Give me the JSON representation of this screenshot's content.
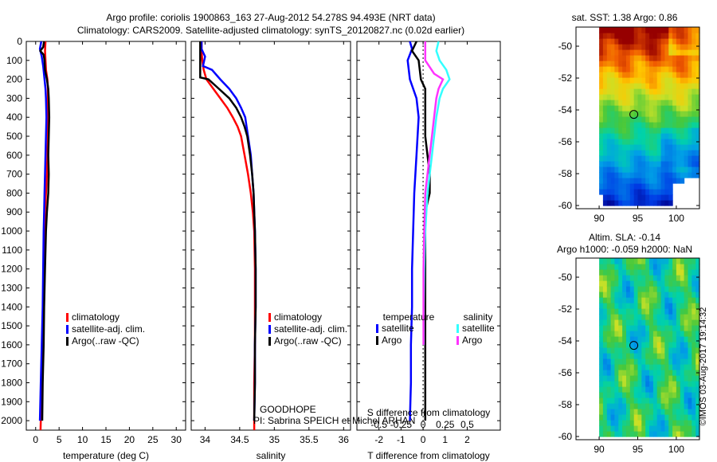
{
  "header": {
    "title_line1": "Argo profile: coriolis 1900863_163 27-Aug-2012 54.278S 94.493E (NRT data)",
    "title_line2": "Climatology: CARS2009. Satellite-adjusted climatology: synTS_20120827.nc (0.02d earlier)"
  },
  "colors": {
    "climatology": "#ff0000",
    "satellite": "#0000ff",
    "argo": "#000000",
    "sal_satellite": "#33ffff",
    "sal_argo": "#ff33ff"
  },
  "yaxis": {
    "ylim": [
      0,
      2050
    ],
    "ticks": [
      0,
      100,
      200,
      300,
      400,
      500,
      600,
      700,
      800,
      900,
      1000,
      1100,
      1200,
      1300,
      1400,
      1500,
      1600,
      1700,
      1800,
      1900,
      2000
    ]
  },
  "chart_data": [
    {
      "type": "line",
      "id": "temperature",
      "xlabel": "temperature (deg C)",
      "xlim": [
        -2,
        32
      ],
      "xticks": [
        0,
        5,
        10,
        15,
        20,
        25,
        30
      ],
      "xtick_labels": [
        "0",
        "5",
        "10",
        "15",
        "20",
        "25",
        "30"
      ],
      "legend": [
        "climatology",
        "satellite-adj. clim.",
        "Argo(..raw -QC)"
      ],
      "series": [
        {
          "name": "climatology",
          "color": "#ff0000",
          "points": [
            [
              2.1,
              0
            ],
            [
              2.0,
              50
            ],
            [
              2.1,
              100
            ],
            [
              2.2,
              150
            ],
            [
              2.5,
              200
            ],
            [
              2.6,
              250
            ],
            [
              2.6,
              300
            ],
            [
              2.6,
              400
            ],
            [
              2.6,
              500
            ],
            [
              2.5,
              600
            ],
            [
              2.4,
              700
            ],
            [
              2.2,
              800
            ],
            [
              2.0,
              900
            ],
            [
              1.9,
              1000
            ],
            [
              1.8,
              1200
            ],
            [
              1.6,
              1400
            ],
            [
              1.5,
              1600
            ],
            [
              1.3,
              1800
            ],
            [
              1.1,
              2000
            ],
            [
              1.05,
              2050
            ]
          ]
        },
        {
          "name": "satellite-adj. clim.",
          "color": "#0000ff",
          "points": [
            [
              1.2,
              0
            ],
            [
              0.9,
              40
            ],
            [
              1.3,
              80
            ],
            [
              1.6,
              130
            ],
            [
              1.9,
              200
            ],
            [
              2.1,
              250
            ],
            [
              2.2,
              300
            ],
            [
              2.3,
              400
            ],
            [
              2.2,
              500
            ],
            [
              2.1,
              600
            ],
            [
              2.0,
              700
            ],
            [
              1.9,
              800
            ],
            [
              1.8,
              900
            ],
            [
              1.7,
              1000
            ],
            [
              1.6,
              1200
            ],
            [
              1.5,
              1400
            ],
            [
              1.3,
              1600
            ],
            [
              1.1,
              1800
            ],
            [
              0.9,
              2000
            ]
          ]
        },
        {
          "name": "Argo(..raw -QC)",
          "color": "#000000",
          "points": [
            [
              1.8,
              0
            ],
            [
              1.6,
              30
            ],
            [
              1.0,
              50
            ],
            [
              1.7,
              70
            ],
            [
              1.9,
              100
            ],
            [
              2.0,
              150
            ],
            [
              2.4,
              200
            ],
            [
              2.7,
              250
            ],
            [
              2.8,
              300
            ],
            [
              2.9,
              400
            ],
            [
              2.8,
              500
            ],
            [
              2.7,
              600
            ],
            [
              2.8,
              700
            ],
            [
              2.7,
              800
            ],
            [
              2.4,
              900
            ],
            [
              2.2,
              1000
            ],
            [
              2.0,
              1200
            ],
            [
              1.8,
              1400
            ],
            [
              1.7,
              1600
            ],
            [
              1.5,
              1800
            ],
            [
              1.4,
              2000
            ]
          ]
        }
      ]
    },
    {
      "type": "line",
      "id": "salinity",
      "xlabel": "salinity",
      "xlim": [
        33.8,
        36.1
      ],
      "xticks": [
        34,
        34.5,
        35,
        35.5,
        36
      ],
      "xtick_labels": [
        "34",
        "34.5",
        "35",
        "35.5",
        "36"
      ],
      "legend": [
        "climatology",
        "satellite-adj. clim.",
        "Argo(..raw -QC)"
      ],
      "series": [
        {
          "name": "climatology",
          "color": "#ff0000",
          "points": [
            [
              33.95,
              0
            ],
            [
              33.95,
              50
            ],
            [
              33.96,
              100
            ],
            [
              33.98,
              150
            ],
            [
              34.02,
              200
            ],
            [
              34.12,
              250
            ],
            [
              34.22,
              300
            ],
            [
              34.32,
              350
            ],
            [
              34.4,
              400
            ],
            [
              34.47,
              450
            ],
            [
              34.52,
              500
            ],
            [
              34.57,
              600
            ],
            [
              34.62,
              700
            ],
            [
              34.66,
              800
            ],
            [
              34.69,
              900
            ],
            [
              34.71,
              1000
            ],
            [
              34.72,
              1200
            ],
            [
              34.72,
              1400
            ],
            [
              34.72,
              1600
            ],
            [
              34.71,
              1800
            ],
            [
              34.71,
              2000
            ],
            [
              34.71,
              2050
            ]
          ]
        },
        {
          "name": "satellite-adj. clim.",
          "color": "#0000ff",
          "points": [
            [
              33.95,
              0
            ],
            [
              33.95,
              40
            ],
            [
              34.0,
              80
            ],
            [
              33.97,
              130
            ],
            [
              34.1,
              150
            ],
            [
              34.22,
              200
            ],
            [
              34.35,
              250
            ],
            [
              34.45,
              300
            ],
            [
              34.52,
              350
            ],
            [
              34.58,
              400
            ],
            [
              34.62,
              500
            ],
            [
              34.66,
              600
            ],
            [
              34.68,
              700
            ],
            [
              34.7,
              800
            ],
            [
              34.71,
              900
            ],
            [
              34.72,
              1000
            ],
            [
              34.73,
              1200
            ],
            [
              34.73,
              1400
            ],
            [
              34.72,
              1600
            ],
            [
              34.72,
              1800
            ],
            [
              34.71,
              2000
            ]
          ]
        },
        {
          "name": "Argo(..raw -QC)",
          "color": "#000000",
          "points": [
            [
              33.93,
              0
            ],
            [
              33.93,
              100
            ],
            [
              33.93,
              190
            ],
            [
              34.05,
              200
            ],
            [
              34.2,
              250
            ],
            [
              34.35,
              300
            ],
            [
              34.45,
              350
            ],
            [
              34.52,
              400
            ],
            [
              34.57,
              450
            ],
            [
              34.61,
              500
            ],
            [
              34.65,
              600
            ],
            [
              34.68,
              700
            ],
            [
              34.7,
              800
            ],
            [
              34.71,
              900
            ],
            [
              34.72,
              1000
            ],
            [
              34.73,
              1200
            ],
            [
              34.73,
              1400
            ],
            [
              34.72,
              1600
            ],
            [
              34.72,
              1800
            ],
            [
              34.71,
              2000
            ]
          ]
        }
      ],
      "annotation": [
        "GOODHOPE",
        "PI: Sabrina SPEICH et Michel ARHAN"
      ]
    },
    {
      "type": "line",
      "id": "differences",
      "xlabel": "T difference from climatology",
      "xlim": [
        -3,
        3.5
      ],
      "xticks": [
        -2,
        -1,
        0,
        1,
        2
      ],
      "xtick_labels": [
        "-2",
        "-1",
        "0",
        "1",
        "2"
      ],
      "x2label": "S difference from climatology",
      "x2ticks": [
        -0.5,
        -0.25,
        0,
        0.25,
        0.5
      ],
      "x2tick_labels": [
        "-0.5",
        "-0.25",
        "0",
        "0.25",
        "0.5"
      ],
      "legend_headers": [
        "temperature",
        "salinity"
      ],
      "legend": [
        "satellite",
        "Argo",
        "satellite",
        "Argo"
      ],
      "series": [
        {
          "name": "satellite",
          "color": "#0000ff",
          "group": "temperature",
          "points": [
            [
              -0.6,
              0
            ],
            [
              -0.5,
              40
            ],
            [
              -0.7,
              100
            ],
            [
              -0.6,
              200
            ],
            [
              -0.3,
              300
            ],
            [
              -0.2,
              400
            ],
            [
              -0.3,
              600
            ],
            [
              -0.4,
              800
            ],
            [
              -0.45,
              1000
            ],
            [
              -0.5,
              1200
            ],
            [
              -0.5,
              1400
            ],
            [
              -0.55,
              1600
            ],
            [
              -0.55,
              1800
            ],
            [
              -0.6,
              2000
            ]
          ]
        },
        {
          "name": "Argo",
          "color": "#000000",
          "group": "temperature",
          "points": [
            [
              -0.3,
              0
            ],
            [
              -0.5,
              50
            ],
            [
              -0.2,
              100
            ],
            [
              -0.1,
              200
            ],
            [
              0.1,
              250
            ],
            [
              0.1,
              300
            ],
            [
              0.1,
              400
            ],
            [
              0.1,
              500
            ],
            [
              0.2,
              600
            ],
            [
              0.3,
              700
            ],
            [
              0.3,
              800
            ],
            [
              0.1,
              900
            ],
            [
              0.1,
              1000
            ],
            [
              0.1,
              1200
            ],
            [
              0.1,
              1400
            ],
            [
              0.1,
              1600
            ],
            [
              0.1,
              1800
            ],
            [
              0.1,
              2000
            ]
          ]
        },
        {
          "name": "satellite",
          "color": "#33ffff",
          "group": "salinity",
          "points": [
            [
              0.7,
              0
            ],
            [
              0.6,
              50
            ],
            [
              0.75,
              100
            ],
            [
              1.05,
              150
            ],
            [
              1.2,
              200
            ],
            [
              0.9,
              250
            ],
            [
              0.75,
              300
            ],
            [
              0.6,
              400
            ],
            [
              0.5,
              500
            ],
            [
              0.4,
              600
            ],
            [
              0.3,
              700
            ],
            [
              0.2,
              800
            ],
            [
              0.15,
              900
            ],
            [
              0.1,
              1000
            ],
            [
              0.05,
              1200
            ],
            [
              0.03,
              1400
            ],
            [
              0.03,
              1600
            ]
          ]
        },
        {
          "name": "Argo",
          "color": "#ff33ff",
          "group": "salinity",
          "points": [
            [
              0.1,
              0
            ],
            [
              0.1,
              100
            ],
            [
              0.5,
              170
            ],
            [
              0.9,
              200
            ],
            [
              0.7,
              250
            ],
            [
              0.6,
              300
            ],
            [
              0.5,
              400
            ],
            [
              0.4,
              500
            ],
            [
              0.3,
              600
            ],
            [
              0.2,
              700
            ],
            [
              0.1,
              800
            ],
            [
              0.05,
              1000
            ],
            [
              0.02,
              1200
            ],
            [
              0.02,
              1400
            ],
            [
              0.02,
              1600
            ]
          ]
        }
      ]
    },
    {
      "type": "heatmap",
      "id": "sst_map",
      "title": "sat. SST: 1.38 Argo: 0.86",
      "xlim": [
        87,
        103
      ],
      "ylim": [
        -60.2,
        -48.8
      ],
      "xticks": [
        90,
        95,
        100
      ],
      "yticks": [
        -50,
        -52,
        -54,
        -56,
        -58,
        -60
      ],
      "marker": {
        "lon": 94.493,
        "lat": -54.278
      }
    },
    {
      "type": "heatmap",
      "id": "sla_map",
      "title_line1": "Altim. SLA: -0.14",
      "title_line2": "Argo h1000: -0.059 h2000: NaN",
      "xlim": [
        87,
        103
      ],
      "ylim": [
        -60.2,
        -48.8
      ],
      "xticks": [
        90,
        95,
        100
      ],
      "yticks": [
        -50,
        -52,
        -54,
        -56,
        -58,
        -60
      ],
      "marker": {
        "lon": 94.493,
        "lat": -54.278
      }
    }
  ],
  "footer_stamp": "©IMOS 03-Aug-2017 19:14:32"
}
